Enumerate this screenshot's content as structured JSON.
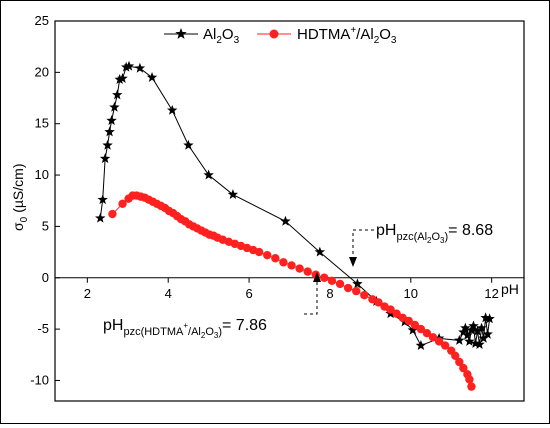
{
  "chart_data": {
    "type": "scatter",
    "xlabel": "pH",
    "ylabel": "σ",
    "ylabel_sub": "0",
    "ylabel_unit": "(µS/cm)",
    "xlim": [
      1.2,
      12.8
    ],
    "ylim": [
      -12,
      25
    ],
    "xticks": [
      2,
      4,
      6,
      8,
      10,
      12
    ],
    "yticks": [
      -10,
      -5,
      0,
      5,
      10,
      15,
      20,
      25
    ],
    "grid": false,
    "legend_position": "top",
    "series": [
      {
        "name": "Al2O3",
        "name_parts": {
          "base": "Al",
          "sub1": "2",
          "mid": "O",
          "sub2": "3"
        },
        "marker": "star",
        "color": "#000000",
        "x": [
          2.32,
          2.38,
          2.44,
          2.5,
          2.55,
          2.6,
          2.67,
          2.74,
          2.8,
          2.87,
          2.96,
          3.03,
          3.3,
          3.6,
          4.1,
          4.5,
          5.0,
          5.6,
          6.9,
          7.75,
          8.68,
          9.15,
          9.5,
          9.85,
          10.05,
          10.25,
          10.7,
          11.2,
          11.3,
          11.35,
          11.4,
          11.45,
          11.5,
          11.55,
          11.6,
          11.65,
          11.7,
          11.75,
          11.8,
          11.85,
          11.9,
          11.95
        ],
        "y": [
          5.8,
          7.6,
          11.6,
          12.9,
          14.2,
          15.3,
          16.6,
          17.8,
          19.3,
          19.4,
          20.5,
          20.6,
          20.4,
          19.5,
          16.3,
          12.9,
          10.0,
          8.1,
          5.5,
          2.5,
          -0.6,
          -2.3,
          -3.5,
          -4.3,
          -5.1,
          -6.6,
          -5.9,
          -6.1,
          -5.3,
          -4.9,
          -5.6,
          -6.2,
          -5.1,
          -4.7,
          -6.4,
          -5.2,
          -6.5,
          -4.9,
          -5.9,
          -3.9,
          -5.5,
          -4.0
        ]
      },
      {
        "name": "HDTMA+/Al2O3",
        "marker": "circle",
        "color": "#ff2020",
        "x": [
          2.62,
          2.87,
          3.02,
          3.12,
          3.22,
          3.32,
          3.42,
          3.52,
          3.62,
          3.72,
          3.82,
          3.92,
          4.02,
          4.12,
          4.22,
          4.32,
          4.42,
          4.52,
          4.62,
          4.72,
          4.82,
          4.92,
          5.02,
          5.12,
          5.22,
          5.35,
          5.5,
          5.65,
          5.8,
          5.95,
          6.1,
          6.25,
          6.45,
          6.65,
          6.85,
          7.05,
          7.25,
          7.45,
          7.65,
          7.86,
          8.05,
          8.25,
          8.45,
          8.65,
          8.85,
          9.05,
          9.2,
          9.35,
          9.5,
          9.65,
          9.8,
          9.95,
          10.1,
          10.25,
          10.4,
          10.55,
          10.7,
          10.85,
          11.0,
          11.1,
          11.2,
          11.3,
          11.4,
          11.45,
          11.5
        ],
        "y": [
          6.2,
          7.2,
          7.7,
          8.0,
          8.0,
          7.9,
          7.8,
          7.6,
          7.4,
          7.2,
          7.0,
          6.8,
          6.5,
          6.3,
          6.0,
          5.7,
          5.5,
          5.2,
          5.0,
          4.8,
          4.6,
          4.4,
          4.2,
          4.1,
          3.9,
          3.7,
          3.5,
          3.3,
          3.1,
          2.9,
          2.7,
          2.5,
          2.2,
          1.9,
          1.5,
          1.2,
          0.9,
          0.6,
          0.3,
          0.0,
          -0.3,
          -0.6,
          -1.0,
          -1.3,
          -1.7,
          -2.1,
          -2.4,
          -2.8,
          -3.1,
          -3.5,
          -3.9,
          -4.2,
          -4.6,
          -5.0,
          -5.4,
          -5.8,
          -6.2,
          -6.6,
          -7.1,
          -7.6,
          -8.2,
          -8.8,
          -9.4,
          -9.9,
          -10.6
        ]
      }
    ],
    "annotations": [
      {
        "id": "pzc_al2o3",
        "base": "pH",
        "sub": "pzc(Al",
        "sub2": "2",
        "sub3": "O",
        "sub4": "3",
        "sub5": ")",
        "value": "= 8.68",
        "x": 8.68,
        "arrow": "down"
      },
      {
        "id": "pzc_hdtma",
        "base": "pH",
        "sub": "pzc(HDTMA",
        "sup": "+",
        "sub_b": "/Al",
        "sub2": "2",
        "sub3": "O",
        "sub4": "3",
        "sub5": ")",
        "value": "= 7.86",
        "x": 7.86,
        "arrow": "up"
      }
    ]
  }
}
